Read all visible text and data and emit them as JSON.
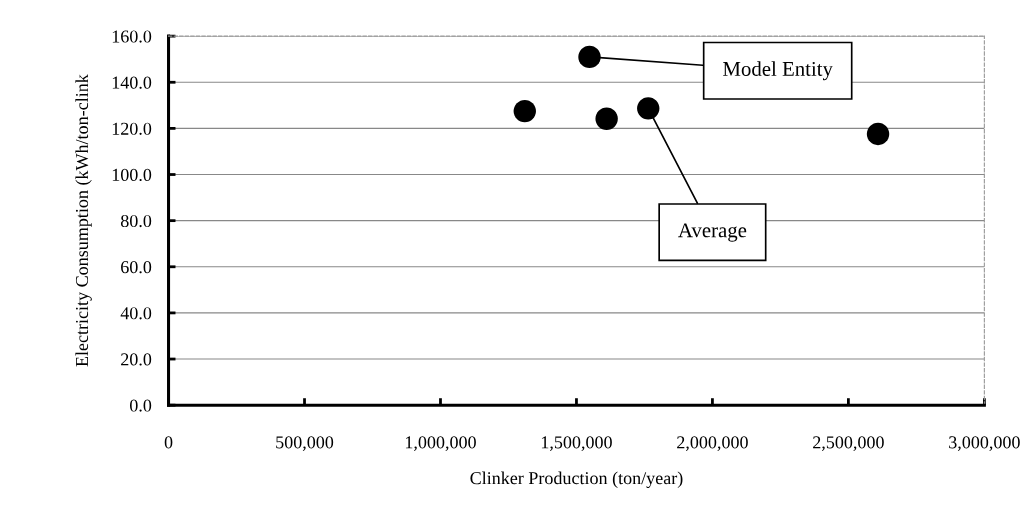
{
  "chart_data": {
    "type": "scatter",
    "xlabel": "Clinker Production (ton/year)",
    "ylabel": "Electricity Consumption (kWh/ton-clink",
    "x": [
      1310000,
      1548000,
      1611000,
      1764000,
      2609000
    ],
    "values": [
      127.5,
      151,
      124.2,
      128.7,
      117.6
    ],
    "color": "#000000",
    "marker": "circle",
    "grid": "y",
    "xlim": [
      0,
      3000000
    ],
    "ylim": [
      0,
      160
    ],
    "xticks": [
      {
        "value": 0,
        "label": "0"
      },
      {
        "value": 500000,
        "label": "500,000"
      },
      {
        "value": 1000000,
        "label": "1,000,000"
      },
      {
        "value": 1500000,
        "label": "1,500,000"
      },
      {
        "value": 2000000,
        "label": "2,000,000"
      },
      {
        "value": 2500000,
        "label": "2,500,000"
      },
      {
        "value": 3000000,
        "label": "3,000,000"
      }
    ],
    "yticks": [
      {
        "value": 0,
        "label": "0.0"
      },
      {
        "value": 20,
        "label": "20.0"
      },
      {
        "value": 40,
        "label": "40.0"
      },
      {
        "value": 60,
        "label": "60.0"
      },
      {
        "value": 80,
        "label": "80.0"
      },
      {
        "value": 100,
        "label": "100.0"
      },
      {
        "value": 120,
        "label": "120.0"
      },
      {
        "value": 140,
        "label": "140.0"
      },
      {
        "value": 160,
        "label": "160.0"
      }
    ],
    "annotations": [
      {
        "text": "Model Entity",
        "x": 1548000,
        "y": 151
      },
      {
        "text": "Average",
        "x": 1764000,
        "y": 128.7
      }
    ]
  }
}
